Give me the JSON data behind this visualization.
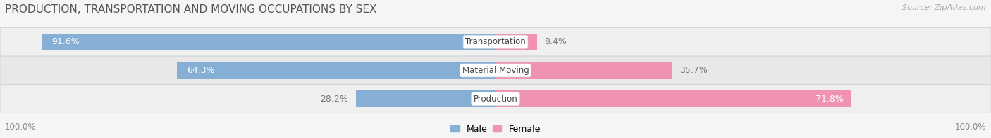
{
  "title": "PRODUCTION, TRANSPORTATION AND MOVING OCCUPATIONS BY SEX",
  "source": "Source: ZipAtlas.com",
  "categories": [
    "Transportation",
    "Material Moving",
    "Production"
  ],
  "male_values": [
    91.6,
    64.3,
    28.2
  ],
  "female_values": [
    8.4,
    35.7,
    71.8
  ],
  "male_color": "#85afd4",
  "female_color": "#f093b0",
  "row_bg_color": "#efefef",
  "row_alt_bg_color": "#e8e8e8",
  "outer_bg_color": "#f5f5f5",
  "title_color": "#555555",
  "source_color": "#aaaaaa",
  "value_color_inside": "#ffffff",
  "value_color_outside": "#777777",
  "category_label_color": "#444444",
  "axis_label_color": "#888888",
  "title_fontsize": 11,
  "source_fontsize": 8,
  "bar_label_fontsize": 9,
  "category_fontsize": 8.5,
  "legend_fontsize": 9,
  "axis_label_fontsize": 8.5,
  "bar_height": 0.6,
  "xlim_left": 0,
  "xlim_right": 100
}
